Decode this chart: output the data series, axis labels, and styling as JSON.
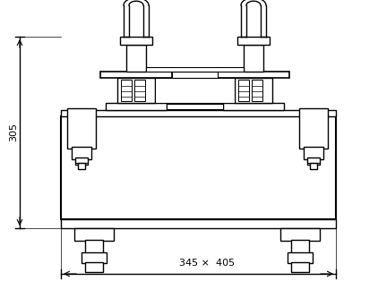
{
  "background_color": "#ffffff",
  "line_color": "#000000",
  "dim_305_text": "305",
  "dim_345x405_text": "345 ×  405"
}
